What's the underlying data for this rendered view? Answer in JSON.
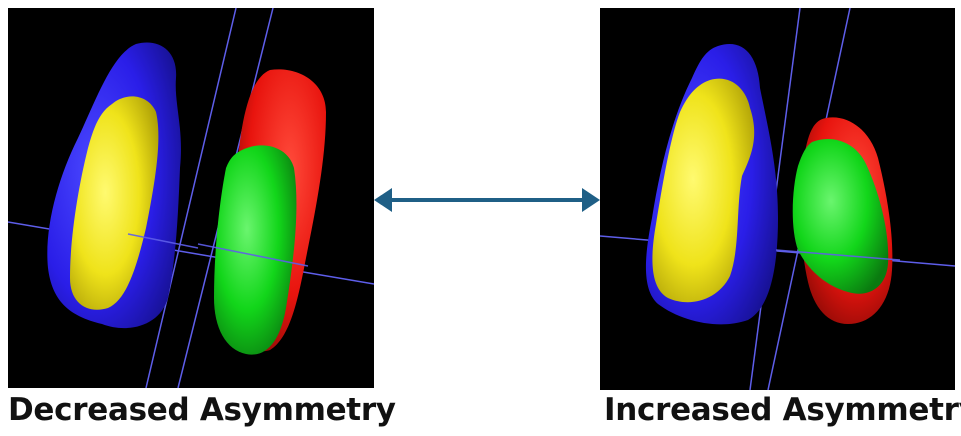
{
  "panels": [
    {
      "id": "left",
      "caption": "Decreased Asymmetry"
    },
    {
      "id": "right",
      "caption": "Increased Asymmetry"
    }
  ],
  "colors": {
    "background": "#000000",
    "outer_left_structure": "#2a1ee8",
    "inner_left_structure": "#f2ea10",
    "outer_right_structure": "#e8140e",
    "inner_right_structure": "#12d61a",
    "axis_lines": "#5e5eea",
    "arrow": "#1f5f86"
  },
  "arrow": {
    "direction": "bidirectional"
  }
}
